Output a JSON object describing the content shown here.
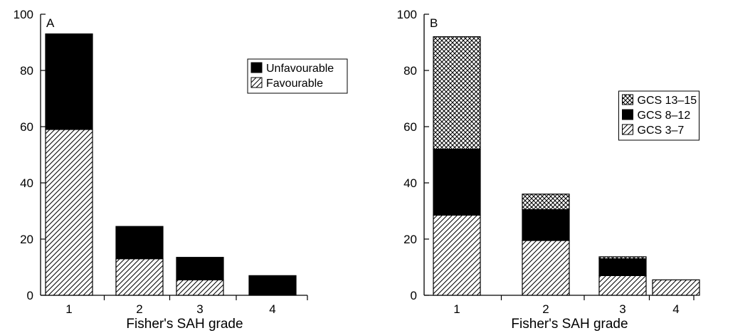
{
  "chart_data": [
    {
      "type": "bar",
      "stacked": true,
      "panel_label": "A",
      "xlabel": "Fisher's SAH grade",
      "ylabel": "",
      "ylim": [
        0,
        100
      ],
      "yticks": [
        0,
        20,
        40,
        60,
        80,
        100
      ],
      "categories": [
        "1",
        "2",
        "3",
        "4"
      ],
      "series": [
        {
          "name": "Favourable",
          "pattern": "hatch",
          "values": [
            59,
            13,
            5.5,
            0
          ]
        },
        {
          "name": "Unfavourable",
          "pattern": "solid",
          "values": [
            34,
            11.5,
            8,
            7
          ]
        }
      ],
      "legend": {
        "position": "upper-right",
        "order": [
          "Unfavourable",
          "Favourable"
        ]
      }
    },
    {
      "type": "bar",
      "stacked": true,
      "panel_label": "B",
      "xlabel": "Fisher's SAH grade",
      "ylabel": "",
      "ylim": [
        0,
        100
      ],
      "yticks": [
        0,
        20,
        40,
        60,
        80,
        100
      ],
      "categories": [
        "1",
        "2",
        "3",
        "4"
      ],
      "series": [
        {
          "name": "GCS 3–7",
          "pattern": "hatch",
          "values": [
            28.5,
            19.5,
            7,
            5.5
          ]
        },
        {
          "name": "GCS 8–12",
          "pattern": "solid",
          "values": [
            23.5,
            11,
            6,
            0
          ]
        },
        {
          "name": "GCS 13–15",
          "pattern": "crosshatch",
          "values": [
            40,
            5.5,
            0.7,
            0
          ]
        }
      ],
      "legend": {
        "position": "upper-right",
        "order": [
          "GCS 13–15",
          "GCS 8–12",
          "GCS 3–7"
        ]
      }
    }
  ]
}
